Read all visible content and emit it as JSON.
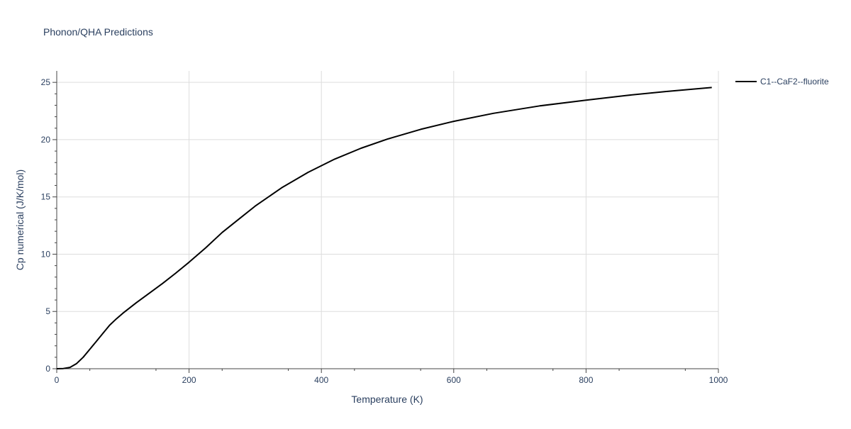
{
  "chart_data": {
    "type": "line",
    "title": "Phonon/QHA Predictions",
    "xlabel": "Temperature (K)",
    "ylabel": "Cp numerical (J/K/mol)",
    "xlim": [
      0,
      1000
    ],
    "ylim": [
      0,
      26
    ],
    "xticks": [
      0,
      200,
      400,
      600,
      800,
      1000
    ],
    "yticks": [
      0,
      5,
      10,
      15,
      20,
      25
    ],
    "grid": true,
    "legend_position": "top-right",
    "series": [
      {
        "name": "C1--CaF2--fluorite",
        "color": "#000000",
        "x": [
          0,
          10,
          20,
          30,
          40,
          50,
          60,
          70,
          80,
          90,
          100,
          120,
          140,
          160,
          180,
          200,
          225,
          250,
          275,
          300,
          340,
          380,
          420,
          460,
          500,
          550,
          600,
          660,
          730,
          800,
          860,
          920,
          990
        ],
        "y": [
          0,
          0.02,
          0.12,
          0.45,
          1.0,
          1.7,
          2.4,
          3.1,
          3.8,
          4.35,
          4.85,
          5.75,
          6.6,
          7.45,
          8.35,
          9.3,
          10.55,
          11.9,
          13.05,
          14.2,
          15.8,
          17.15,
          18.3,
          19.25,
          20.05,
          20.9,
          21.6,
          22.3,
          22.95,
          23.45,
          23.85,
          24.2,
          24.55
        ]
      }
    ]
  }
}
